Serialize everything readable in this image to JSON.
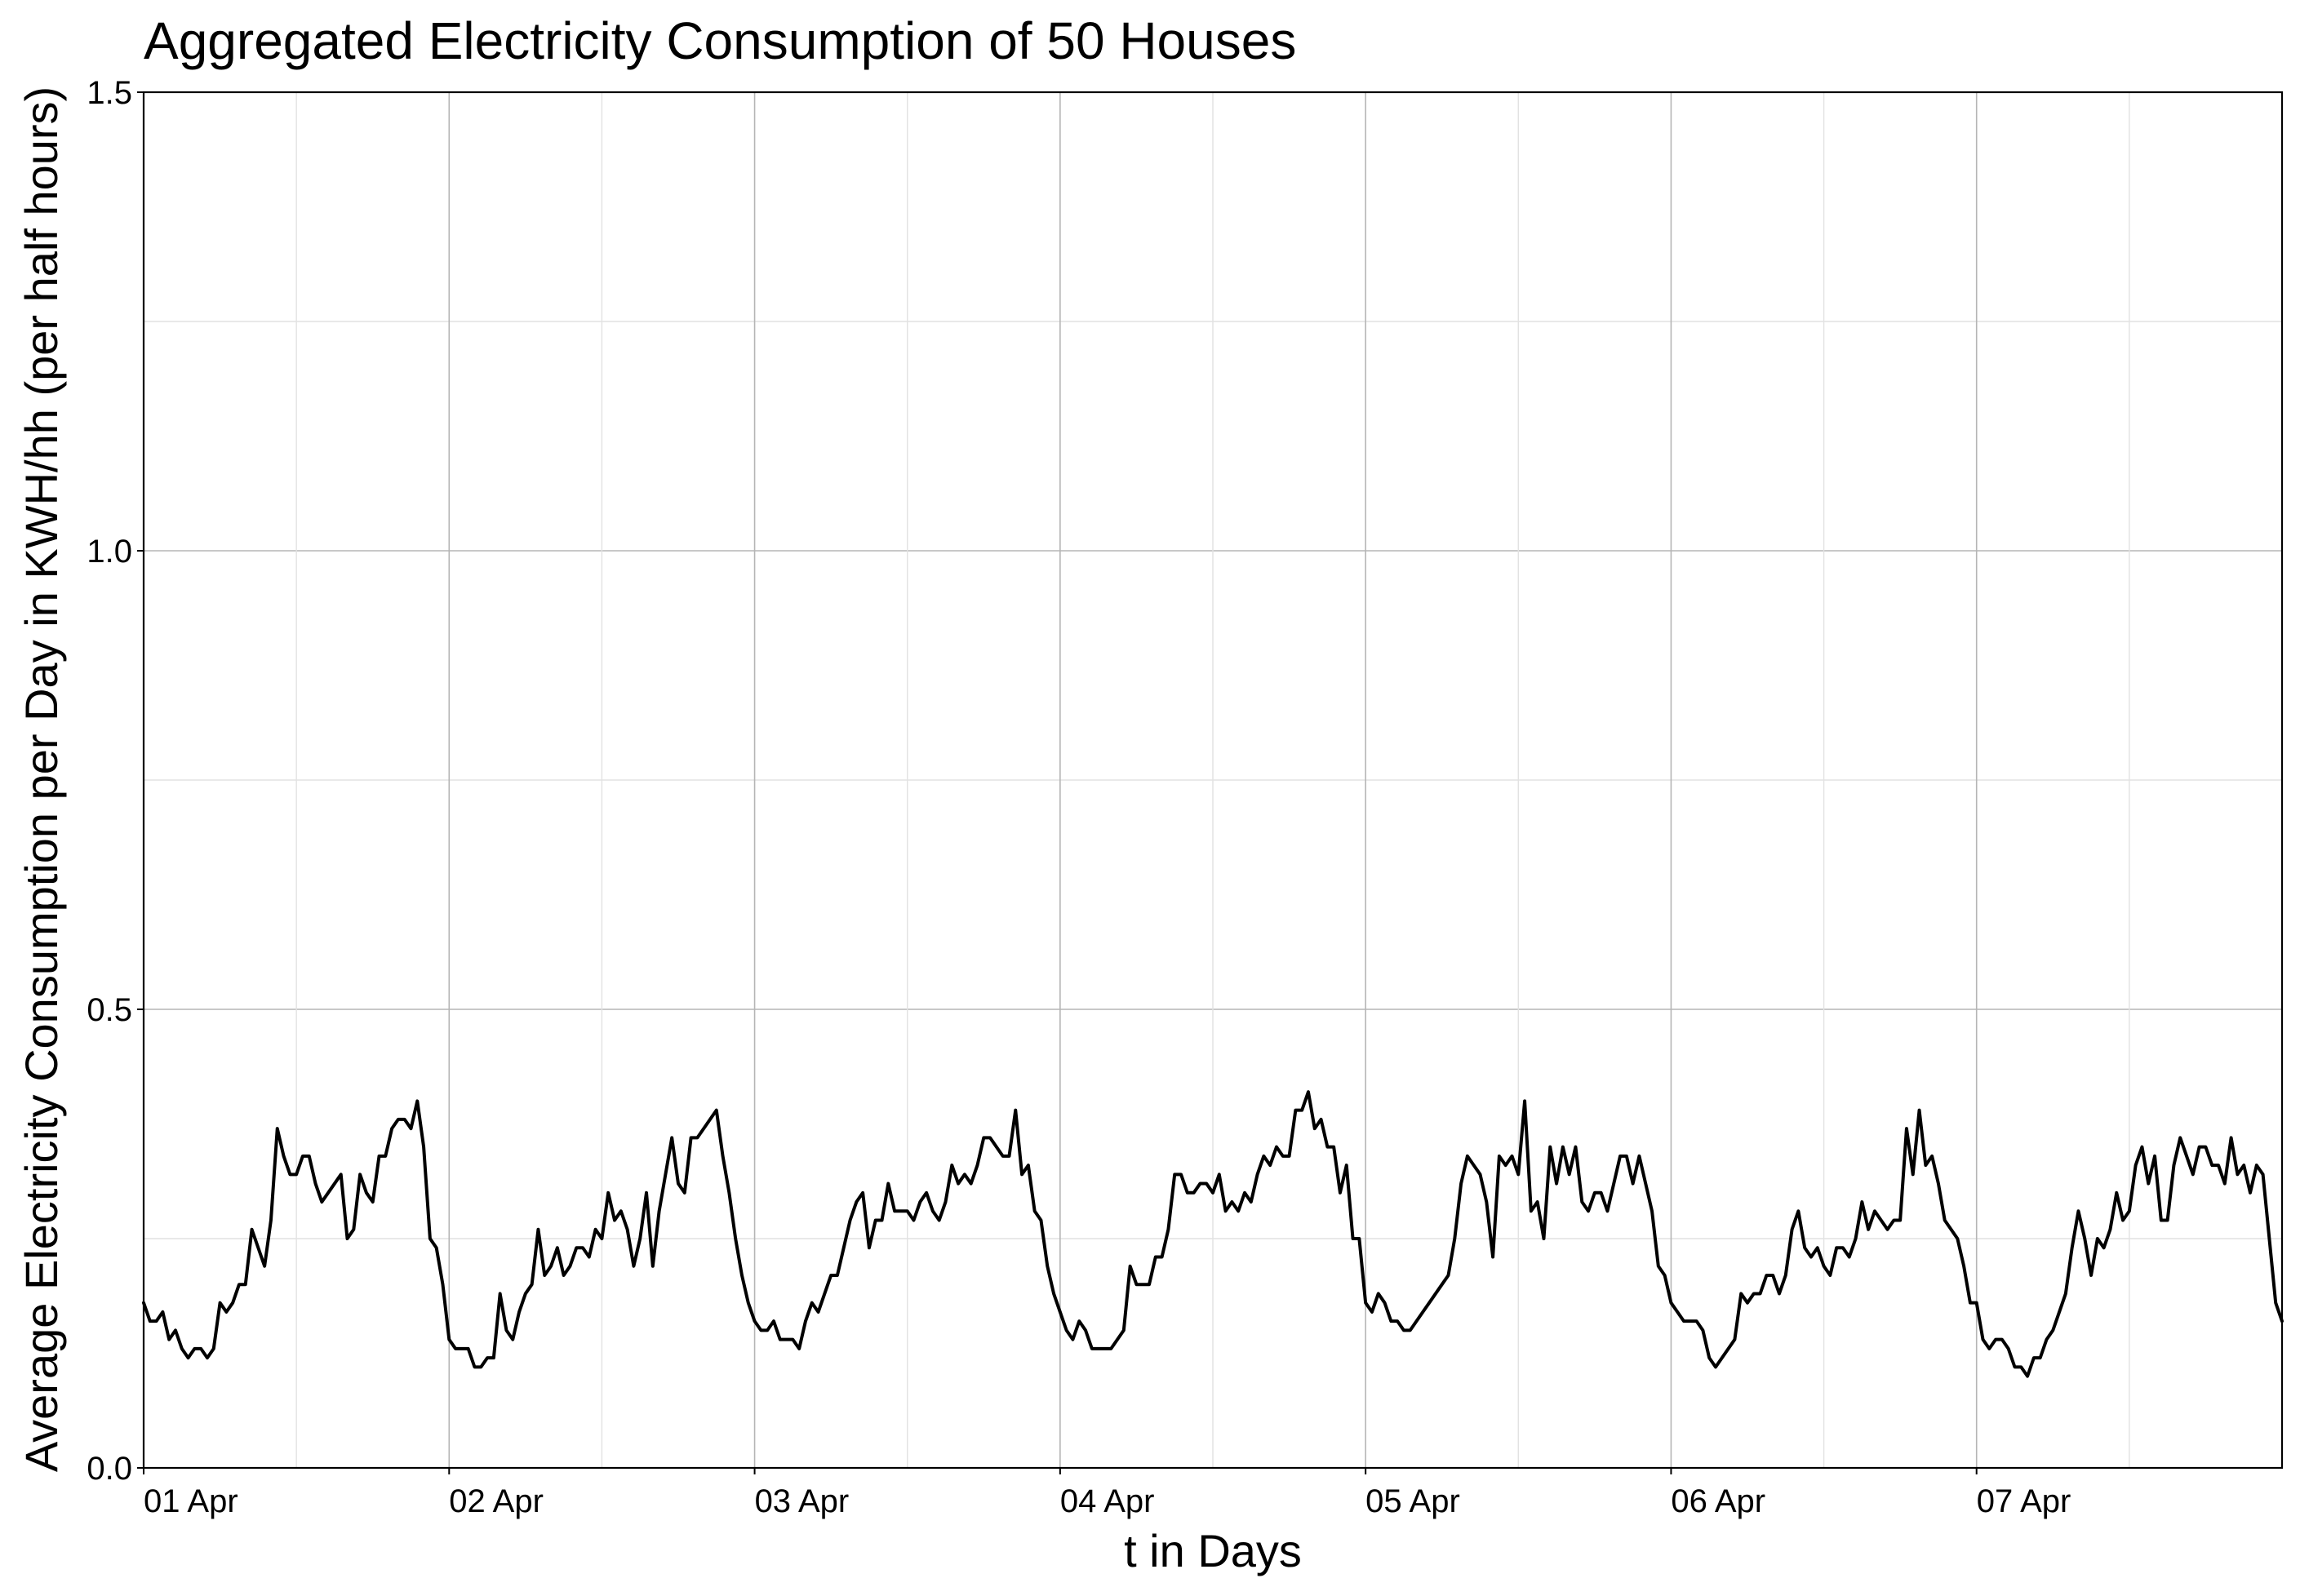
{
  "chart_data": {
    "type": "line",
    "title": "Aggregated Electricity Consumption of 50 Houses",
    "xlabel": "t in Days",
    "ylabel": "Average Electricity Consumption per Day in KWH/hh (per half hours)",
    "x_ticks": [
      "01 Apr",
      "02 Apr",
      "03 Apr",
      "04 Apr",
      "05 Apr",
      "06 Apr",
      "07 Apr"
    ],
    "y_ticks": [
      "0.0",
      "0.5",
      "1.0",
      "1.5"
    ],
    "ylim": [
      0,
      1.5
    ],
    "xlim": [
      "01 Apr 00:00",
      "07 Apr 23:30"
    ],
    "sampling": "half-hourly",
    "grid": true,
    "legend": "none",
    "series": [
      {
        "color": "#000000",
        "values": [
          0.18,
          0.16,
          0.16,
          0.17,
          0.14,
          0.15,
          0.13,
          0.12,
          0.13,
          0.13,
          0.12,
          0.13,
          0.18,
          0.17,
          0.18,
          0.2,
          0.2,
          0.26,
          0.24,
          0.22,
          0.27,
          0.37,
          0.34,
          0.32,
          0.32,
          0.34,
          0.34,
          0.31,
          0.29,
          0.3,
          0.31,
          0.32,
          0.25,
          0.26,
          0.32,
          0.3,
          0.29,
          0.34,
          0.34,
          0.37,
          0.38,
          0.38,
          0.37,
          0.4,
          0.35,
          0.25,
          0.24,
          0.2,
          0.14,
          0.13,
          0.13,
          0.13,
          0.11,
          0.11,
          0.12,
          0.12,
          0.19,
          0.15,
          0.14,
          0.17,
          0.19,
          0.2,
          0.26,
          0.21,
          0.22,
          0.24,
          0.21,
          0.22,
          0.24,
          0.24,
          0.23,
          0.26,
          0.25,
          0.3,
          0.27,
          0.28,
          0.26,
          0.22,
          0.25,
          0.3,
          0.22,
          0.28,
          0.32,
          0.36,
          0.31,
          0.3,
          0.36,
          0.36,
          0.37,
          0.38,
          0.39,
          0.34,
          0.3,
          0.25,
          0.21,
          0.18,
          0.16,
          0.15,
          0.15,
          0.16,
          0.14,
          0.14,
          0.14,
          0.13,
          0.16,
          0.18,
          0.17,
          0.19,
          0.21,
          0.21,
          0.24,
          0.27,
          0.29,
          0.3,
          0.24,
          0.27,
          0.27,
          0.31,
          0.28,
          0.28,
          0.28,
          0.27,
          0.29,
          0.3,
          0.28,
          0.27,
          0.29,
          0.33,
          0.31,
          0.32,
          0.31,
          0.33,
          0.36,
          0.36,
          0.35,
          0.34,
          0.34,
          0.39,
          0.32,
          0.33,
          0.28,
          0.27,
          0.22,
          0.19,
          0.17,
          0.15,
          0.14,
          0.16,
          0.15,
          0.13,
          0.13,
          0.13,
          0.13,
          0.14,
          0.15,
          0.22,
          0.2,
          0.2,
          0.2,
          0.23,
          0.23,
          0.26,
          0.32,
          0.32,
          0.3,
          0.3,
          0.31,
          0.31,
          0.3,
          0.32,
          0.28,
          0.29,
          0.28,
          0.3,
          0.29,
          0.32,
          0.34,
          0.33,
          0.35,
          0.34,
          0.34,
          0.39,
          0.39,
          0.41,
          0.37,
          0.38,
          0.35,
          0.35,
          0.3,
          0.33,
          0.25,
          0.25,
          0.18,
          0.17,
          0.19,
          0.18,
          0.16,
          0.16,
          0.15,
          0.15,
          0.16,
          0.17,
          0.18,
          0.19,
          0.2,
          0.21,
          0.25,
          0.31,
          0.34,
          0.33,
          0.32,
          0.29,
          0.23,
          0.34,
          0.33,
          0.34,
          0.32,
          0.4,
          0.28,
          0.29,
          0.25,
          0.35,
          0.31,
          0.35,
          0.32,
          0.35,
          0.29,
          0.28,
          0.3,
          0.3,
          0.28,
          0.31,
          0.34,
          0.34,
          0.31,
          0.34,
          0.31,
          0.28,
          0.22,
          0.21,
          0.18,
          0.17,
          0.16,
          0.16,
          0.16,
          0.15,
          0.12,
          0.11,
          0.12,
          0.13,
          0.14,
          0.19,
          0.18,
          0.19,
          0.19,
          0.21,
          0.21,
          0.19,
          0.21,
          0.26,
          0.28,
          0.24,
          0.23,
          0.24,
          0.22,
          0.21,
          0.24,
          0.24,
          0.23,
          0.25,
          0.29,
          0.26,
          0.28,
          0.27,
          0.26,
          0.27,
          0.27,
          0.37,
          0.32,
          0.39,
          0.33,
          0.34,
          0.31,
          0.27,
          0.26,
          0.25,
          0.22,
          0.18,
          0.18,
          0.14,
          0.13,
          0.14,
          0.14,
          0.13,
          0.11,
          0.11,
          0.1,
          0.12,
          0.12,
          0.14,
          0.15,
          0.17,
          0.19,
          0.24,
          0.28,
          0.25,
          0.21,
          0.25,
          0.24,
          0.26,
          0.3,
          0.27,
          0.28,
          0.33,
          0.35,
          0.31,
          0.34,
          0.27,
          0.27,
          0.33,
          0.36,
          0.34,
          0.32,
          0.35,
          0.35,
          0.33,
          0.33,
          0.31,
          0.36,
          0.32,
          0.33,
          0.3,
          0.33,
          0.32,
          0.25,
          0.18,
          0.16
        ]
      }
    ]
  }
}
